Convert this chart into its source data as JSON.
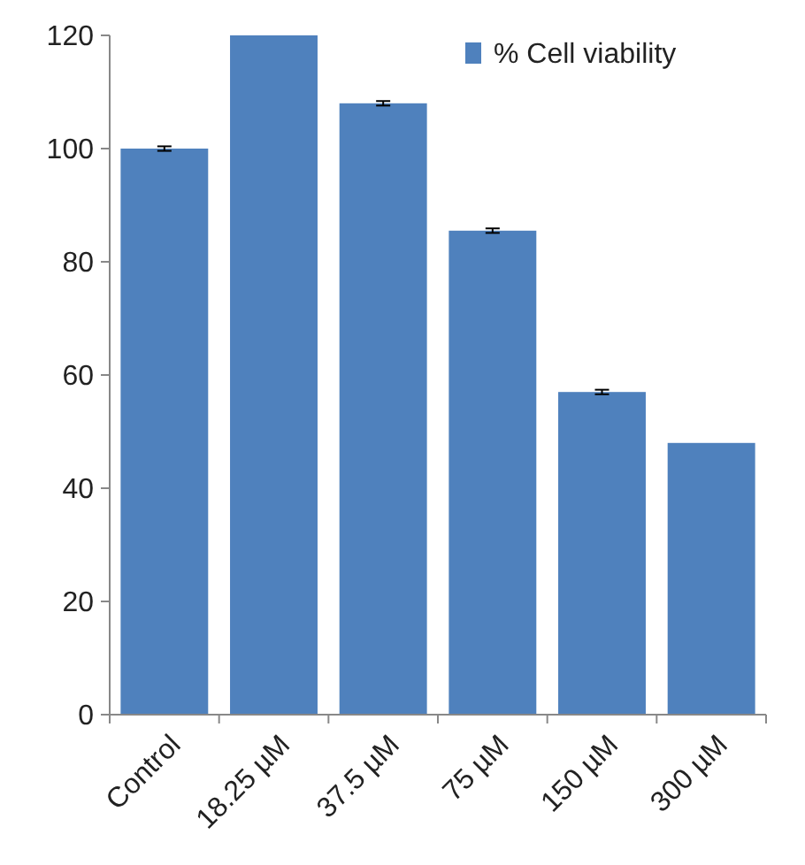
{
  "chart_data": {
    "type": "bar",
    "categories": [
      "Control",
      "18.25 µM",
      "37.5 µM",
      "75 µM",
      "150 µM",
      "300 µM"
    ],
    "series": [
      {
        "name": "% Cell viability",
        "color": "#4f81bd",
        "values": [
          100,
          120,
          108,
          85.5,
          57,
          48
        ],
        "errors": [
          0.4,
          null,
          0.4,
          0.4,
          0.4,
          null
        ]
      }
    ],
    "ylim": [
      0,
      120
    ],
    "yticks": [
      0,
      20,
      40,
      60,
      80,
      100,
      120
    ],
    "legend": "top right"
  }
}
